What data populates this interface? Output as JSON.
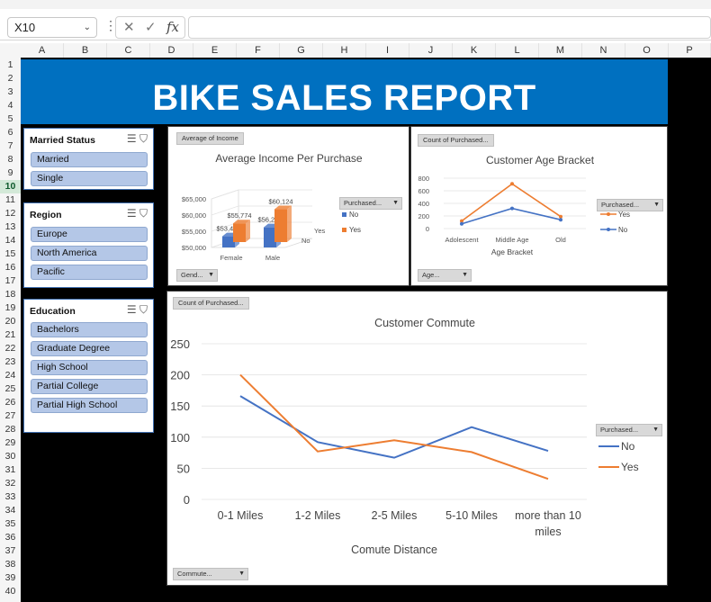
{
  "formula_bar": {
    "name_box": "X10",
    "fx": "fx",
    "cancel": "✕",
    "enter": "✓",
    "dots": "⋮",
    "chevron": "⌄",
    "formula": ""
  },
  "columns": [
    "A",
    "B",
    "C",
    "D",
    "E",
    "F",
    "G",
    "H",
    "I",
    "J",
    "K",
    "L",
    "M",
    "N",
    "O",
    "P"
  ],
  "rows": [
    "1",
    "2",
    "3",
    "4",
    "5",
    "6",
    "7",
    "8",
    "9",
    "10",
    "11",
    "12",
    "13",
    "14",
    "15",
    "16",
    "17",
    "18",
    "19",
    "20",
    "21",
    "22",
    "23",
    "24",
    "25",
    "26",
    "27",
    "28",
    "29",
    "30",
    "31",
    "32",
    "33",
    "34",
    "35",
    "36",
    "37",
    "38",
    "39",
    "40"
  ],
  "selected_row": "10",
  "banner": {
    "title": "BIKE SALES REPORT"
  },
  "slicers": {
    "married": {
      "title": "Married Status",
      "items": [
        "Married",
        "Single"
      ]
    },
    "region": {
      "title": "Region",
      "items": [
        "Europe",
        "North America",
        "Pacific"
      ]
    },
    "education": {
      "title": "Education",
      "items": [
        "Bachelors",
        "Graduate Degree",
        "High School",
        "Partial College",
        "Partial High School"
      ]
    }
  },
  "charts": {
    "income": {
      "field_button": "Average of Income",
      "legend_button": "Purchased...",
      "axis_button": "Gend..."
    },
    "age": {
      "field_button": "Count of Purchased...",
      "legend_button": "Purchased...",
      "axis_button": "Age..."
    },
    "commute": {
      "field_button": "Count of Purchased...",
      "legend_button": "Purchased...",
      "axis_button": "Commute..."
    }
  },
  "chart_data": [
    {
      "type": "bar",
      "title": "Average Income Per Purchase",
      "categories": [
        "Female",
        "Male"
      ],
      "series": [
        {
          "name": "No",
          "values": [
            53440,
            56208
          ]
        },
        {
          "name": "Yes",
          "values": [
            55774,
            60124
          ]
        }
      ],
      "data_labels": [
        [
          "$53,440",
          "$56,208"
        ],
        [
          "$55,774",
          "$60,124"
        ]
      ],
      "yticks": [
        "$50,000",
        "$55,000",
        "$60,000",
        "$65,000"
      ],
      "ylim": [
        50000,
        65000
      ],
      "depth_axis_labels": [
        "No",
        "Yes"
      ],
      "legend": "right",
      "colors": [
        "#4472c4",
        "#ed7d31"
      ]
    },
    {
      "type": "line",
      "title": "Customer Age Bracket",
      "xlabel": "Age Bracket",
      "categories": [
        "Adolescent",
        "Middle Age",
        "Old"
      ],
      "series": [
        {
          "name": "Yes",
          "values": [
            120,
            710,
            190
          ]
        },
        {
          "name": "No",
          "values": [
            75,
            320,
            140
          ]
        }
      ],
      "yticks": [
        "0",
        "200",
        "400",
        "600",
        "800"
      ],
      "ylim": [
        0,
        800
      ],
      "legend": "right",
      "colors": [
        "#ed7d31",
        "#4472c4"
      ]
    },
    {
      "type": "line",
      "title": "Customer Commute",
      "xlabel": "Comute Distance",
      "categories": [
        "0-1 Miles",
        "1-2 Miles",
        "2-5 Miles",
        "5-10 Miles",
        "more than 10 miles"
      ],
      "series": [
        {
          "name": "No",
          "values": [
            166,
            92,
            67,
            116,
            78
          ]
        },
        {
          "name": "Yes",
          "values": [
            200,
            77,
            95,
            76,
            33
          ]
        }
      ],
      "yticks": [
        "0",
        "50",
        "100",
        "150",
        "200",
        "250"
      ],
      "ylim": [
        0,
        250
      ],
      "legend": "right",
      "colors": [
        "#4472c4",
        "#ed7d31"
      ]
    }
  ]
}
